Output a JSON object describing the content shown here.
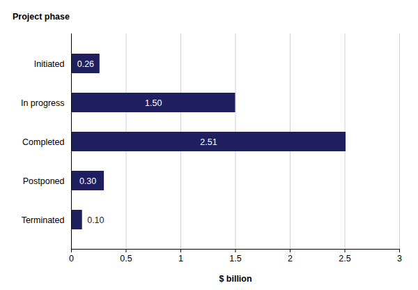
{
  "chart_data": {
    "type": "bar",
    "orientation": "horizontal",
    "ylabel": "Project phase",
    "xlabel": "$ billion",
    "categories": [
      "Initiated",
      "In progress",
      "Completed",
      "Postponed",
      "Terminated"
    ],
    "values": [
      0.26,
      1.5,
      2.51,
      0.3,
      0.1
    ],
    "value_labels": [
      "0.26",
      "1.50",
      "2.51",
      "0.30",
      "0.10"
    ],
    "color": "#1f1f5f",
    "xlim": [
      0,
      3
    ],
    "xticks": [
      0,
      0.5,
      1,
      1.5,
      2,
      2.5,
      3
    ],
    "grid": true,
    "data_labels": true
  }
}
